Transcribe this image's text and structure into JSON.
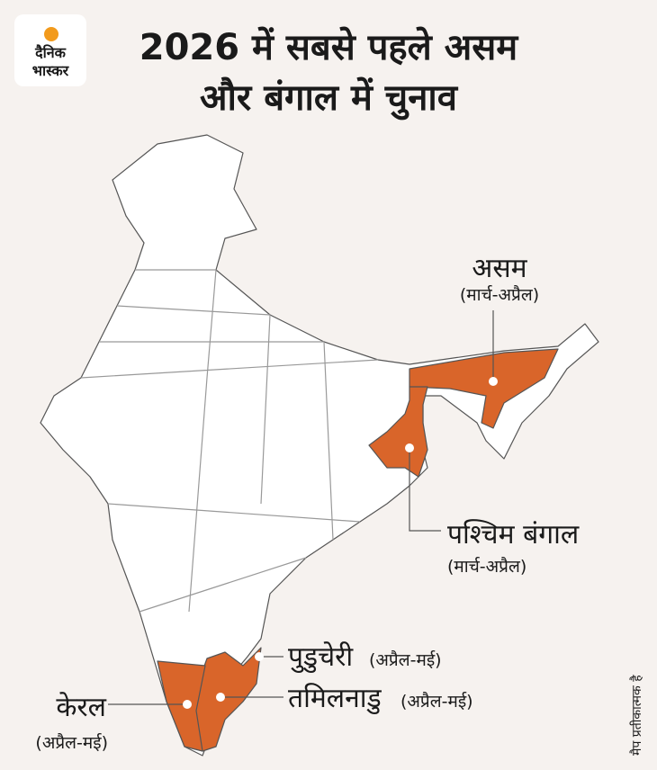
{
  "logo": {
    "line1": "दैनिक",
    "line2": "भास्कर"
  },
  "title": {
    "lines": [
      "2026 में सबसे पहले असम",
      "और बंगाल में चुनाव"
    ]
  },
  "labels": {
    "assam": {
      "name": "असम",
      "period": "(मार्च-अप्रैल)"
    },
    "bengal": {
      "name": "पश्चिम बंगाल",
      "period": "(मार्च-अप्रैल)"
    },
    "puducherry": {
      "name": "पुडुचेरी",
      "period": "(अप्रैल-मई)"
    },
    "tamilnadu": {
      "name": "तमिलनाडु",
      "period": "(अप्रैल-मई)"
    },
    "kerala": {
      "name": "केरल",
      "period": "(अप्रैल-मई)"
    }
  },
  "note": "मैप प्रतीकात्मक है"
}
